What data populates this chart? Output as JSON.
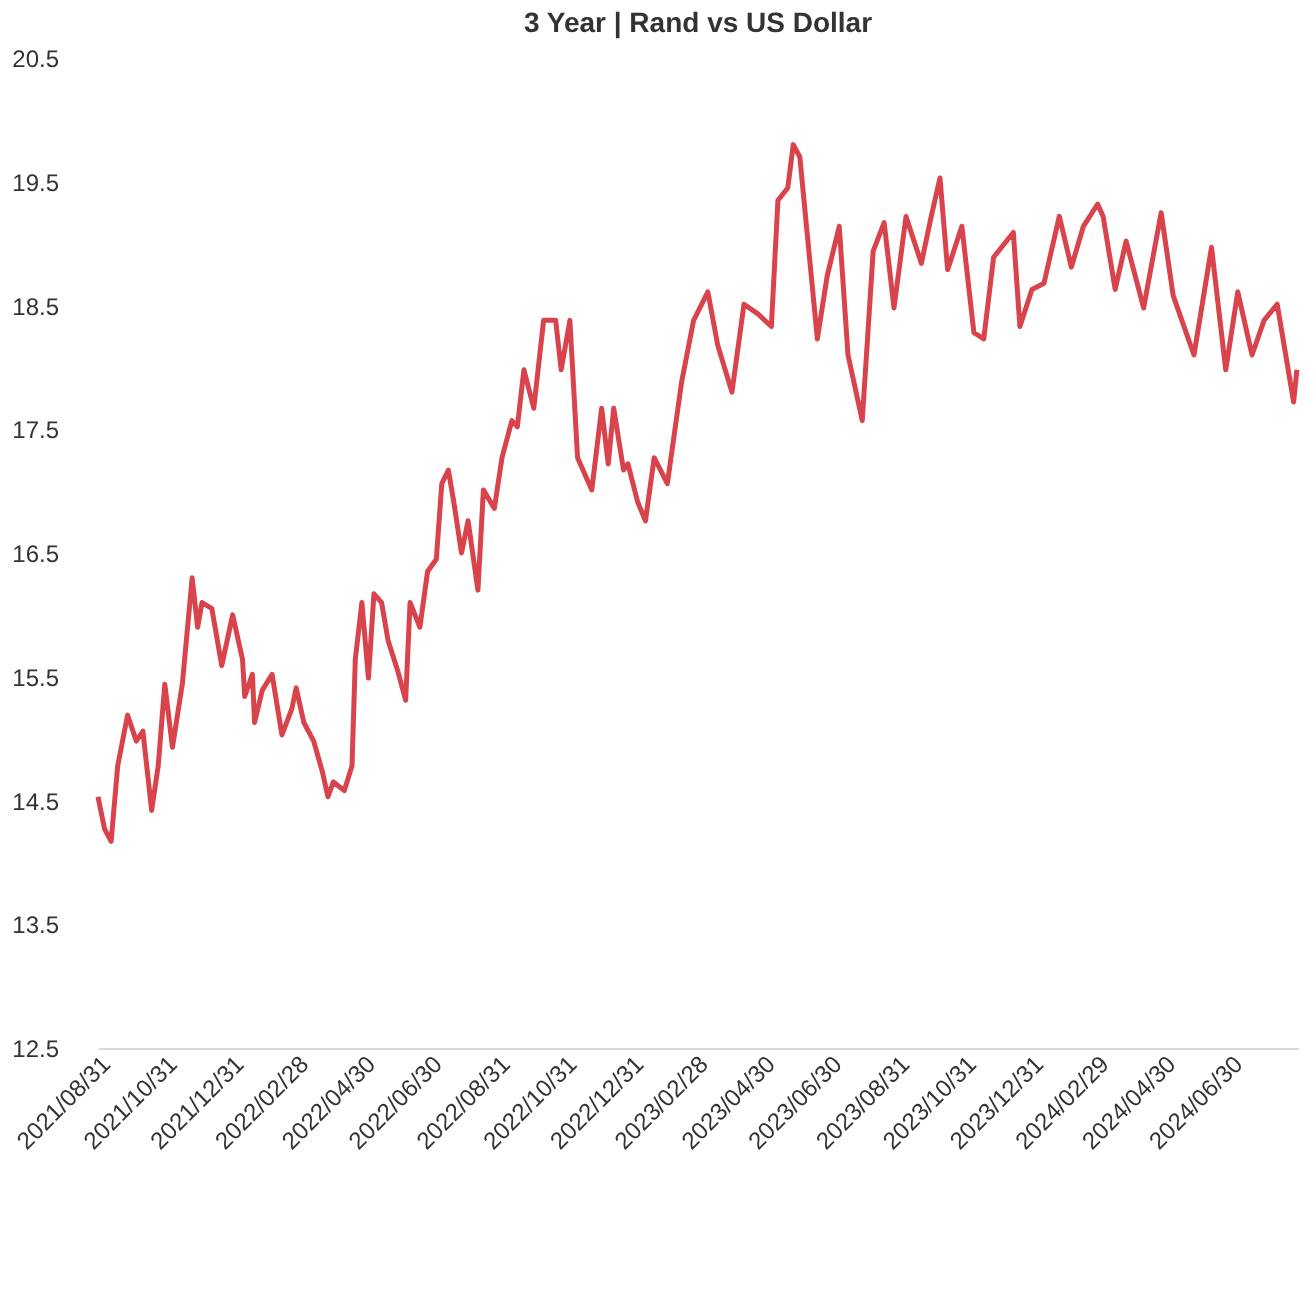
{
  "chart_data": {
    "type": "line",
    "title": "3 Year | Rand vs US Dollar",
    "x": [
      "2021-08-31",
      "2021-09-06",
      "2021-09-12",
      "2021-09-18",
      "2021-09-27",
      "2021-10-05",
      "2021-10-11",
      "2021-10-19",
      "2021-10-25",
      "2021-10-31",
      "2021-11-07",
      "2021-11-16",
      "2021-11-25",
      "2021-11-30",
      "2021-12-04",
      "2021-12-13",
      "2021-12-22",
      "2022-01-01",
      "2022-01-10",
      "2022-01-12",
      "2022-01-19",
      "2022-01-21",
      "2022-01-28",
      "2022-02-06",
      "2022-02-15",
      "2022-02-24",
      "2022-02-28",
      "2022-03-07",
      "2022-03-16",
      "2022-03-24",
      "2022-03-29",
      "2022-04-03",
      "2022-04-13",
      "2022-04-20",
      "2022-04-23",
      "2022-04-29",
      "2022-05-05",
      "2022-05-10",
      "2022-05-17",
      "2022-05-23",
      "2022-06-01",
      "2022-06-08",
      "2022-06-12",
      "2022-06-21",
      "2022-06-28",
      "2022-07-06",
      "2022-07-11",
      "2022-07-17",
      "2022-07-22",
      "2022-07-29",
      "2022-08-04",
      "2022-08-13",
      "2022-08-18",
      "2022-08-28",
      "2022-09-04",
      "2022-09-13",
      "2022-09-18",
      "2022-09-24",
      "2022-10-03",
      "2022-10-12",
      "2022-10-23",
      "2022-10-28",
      "2022-11-05",
      "2022-11-12",
      "2022-11-25",
      "2022-12-04",
      "2022-12-10",
      "2022-12-15",
      "2022-12-24",
      "2022-12-28",
      "2023-01-06",
      "2023-01-13",
      "2023-01-21",
      "2023-02-02",
      "2023-02-15",
      "2023-02-26",
      "2023-03-11",
      "2023-03-20",
      "2023-04-02",
      "2023-04-13",
      "2023-04-26",
      "2023-05-08",
      "2023-05-14",
      "2023-05-23",
      "2023-05-28",
      "2023-06-03",
      "2023-06-19",
      "2023-06-28",
      "2023-07-09",
      "2023-07-17",
      "2023-07-30",
      "2023-08-09",
      "2023-08-19",
      "2023-08-28",
      "2023-09-08",
      "2023-09-22",
      "2023-10-01",
      "2023-10-09",
      "2023-10-16",
      "2023-10-29",
      "2023-11-09",
      "2023-11-18",
      "2023-11-27",
      "2023-12-15",
      "2023-12-21",
      "2024-01-01",
      "2024-01-12",
      "2024-01-26",
      "2024-02-06",
      "2024-02-17",
      "2024-03-01",
      "2024-03-06",
      "2024-03-17",
      "2024-03-27",
      "2024-04-12",
      "2024-04-28",
      "2024-05-09",
      "2024-05-28",
      "2024-06-13",
      "2024-06-26",
      "2024-07-07",
      "2024-07-20",
      "2024-07-31",
      "2024-08-12",
      "2024-08-27",
      "2024-08-30"
    ],
    "series": [
      {
        "color": "#d9434c",
        "values": [
          14.53,
          14.27,
          14.17,
          14.78,
          15.19,
          14.98,
          15.06,
          14.42,
          14.78,
          15.44,
          14.93,
          15.44,
          16.3,
          15.9,
          16.1,
          16.05,
          15.59,
          16.0,
          15.64,
          15.34,
          15.52,
          15.13,
          15.39,
          15.52,
          15.03,
          15.24,
          15.41,
          15.13,
          14.98,
          14.73,
          14.53,
          14.65,
          14.58,
          14.78,
          15.64,
          16.1,
          15.49,
          16.17,
          16.1,
          15.79,
          15.54,
          15.31,
          16.1,
          15.9,
          16.35,
          16.45,
          17.06,
          17.17,
          16.91,
          16.5,
          16.76,
          16.2,
          17.01,
          16.86,
          17.27,
          17.57,
          17.52,
          17.98,
          17.67,
          18.38,
          18.38,
          17.98,
          18.38,
          17.27,
          17.01,
          17.67,
          17.22,
          17.67,
          17.17,
          17.22,
          16.91,
          16.76,
          17.27,
          17.06,
          17.88,
          18.38,
          18.61,
          18.18,
          17.8,
          18.51,
          18.43,
          18.33,
          19.35,
          19.45,
          19.8,
          19.7,
          18.23,
          18.74,
          19.14,
          18.1,
          17.57,
          18.94,
          19.17,
          18.48,
          19.22,
          18.84,
          19.22,
          19.53,
          18.79,
          19.14,
          18.28,
          18.23,
          18.89,
          19.09,
          18.33,
          18.63,
          18.68,
          19.22,
          18.81,
          19.14,
          19.32,
          19.22,
          18.63,
          19.02,
          18.48,
          19.25,
          18.58,
          18.1,
          18.97,
          17.98,
          18.61,
          18.1,
          18.38,
          18.51,
          17.72,
          17.98
        ]
      }
    ],
    "xlim": [
      "2021-08-31",
      "2024-08-31"
    ],
    "xticks": [
      {
        "value": "2021-08-31",
        "label": "2021/08/31"
      },
      {
        "value": "2021-10-31",
        "label": "2021/10/31"
      },
      {
        "value": "2021-12-31",
        "label": "2021/12/31"
      },
      {
        "value": "2022-02-28",
        "label": "2022/02/28"
      },
      {
        "value": "2022-04-30",
        "label": "2022/04/30"
      },
      {
        "value": "2022-06-30",
        "label": "2022/06/30"
      },
      {
        "value": "2022-08-31",
        "label": "2022/08/31"
      },
      {
        "value": "2022-10-31",
        "label": "2022/10/31"
      },
      {
        "value": "2022-12-31",
        "label": "2022/12/31"
      },
      {
        "value": "2023-02-28",
        "label": "2023/02/28"
      },
      {
        "value": "2023-04-30",
        "label": "2023/04/30"
      },
      {
        "value": "2023-06-30",
        "label": "2023/06/30"
      },
      {
        "value": "2023-08-31",
        "label": "2023/08/31"
      },
      {
        "value": "2023-10-31",
        "label": "2023/10/31"
      },
      {
        "value": "2023-12-31",
        "label": "2023/12/31"
      },
      {
        "value": "2024-02-29",
        "label": "2024/02/29"
      },
      {
        "value": "2024-04-30",
        "label": "2024/04/30"
      },
      {
        "value": "2024-06-30",
        "label": "2024/06/30"
      }
    ],
    "ylim": [
      12.5,
      20.5
    ],
    "yticks": [
      12.5,
      13.5,
      14.5,
      15.5,
      16.5,
      17.5,
      18.5,
      19.5,
      20.5
    ],
    "grid": false,
    "legend": false,
    "marker": "none",
    "line_style": "solid"
  }
}
